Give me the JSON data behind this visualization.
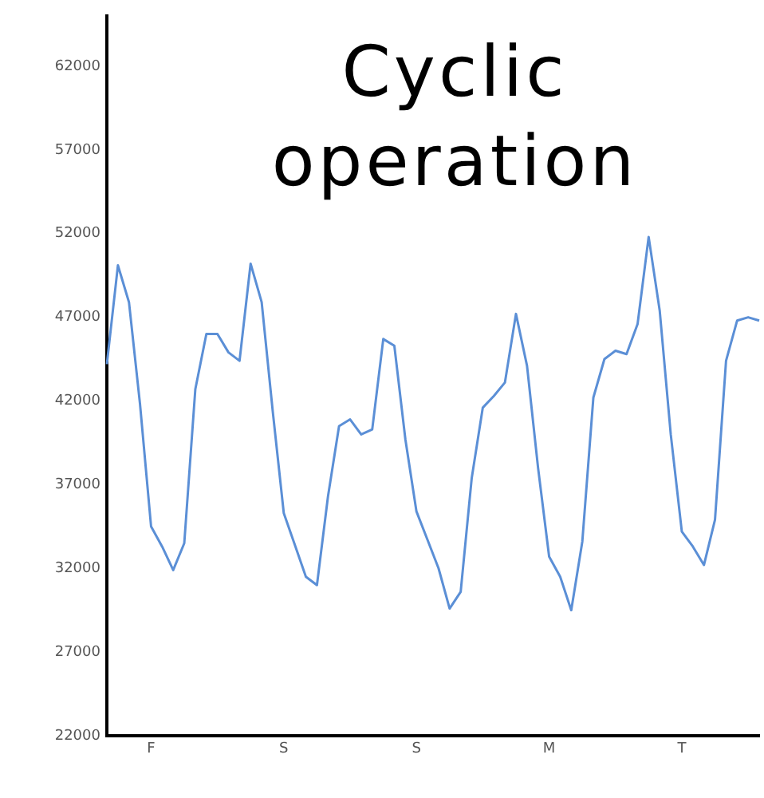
{
  "chart_data": {
    "type": "line",
    "title": "Cyclic operation",
    "categories": [
      null,
      null,
      null,
      null,
      "F",
      null,
      null,
      null,
      null,
      null,
      null,
      null,
      null,
      null,
      null,
      null,
      "S",
      null,
      null,
      null,
      null,
      null,
      null,
      null,
      null,
      null,
      null,
      null,
      "S",
      null,
      null,
      null,
      null,
      null,
      null,
      null,
      null,
      null,
      null,
      null,
      "M",
      null,
      null,
      null,
      null,
      null,
      null,
      null,
      null,
      null,
      null,
      null,
      "T",
      null,
      null,
      null,
      null,
      null,
      null,
      null
    ],
    "series": [
      {
        "color": "#5b8fd6",
        "values": [
          44200,
          50100,
          47900,
          41800,
          34500,
          33300,
          31900,
          33500,
          42700,
          46000,
          46000,
          44900,
          44400,
          50200,
          47900,
          41400,
          35300,
          33400,
          31500,
          31000,
          36300,
          40500,
          40900,
          40000,
          40300,
          45700,
          45300,
          39700,
          35400,
          33700,
          32000,
          29600,
          30600,
          37400,
          41600,
          42300,
          43100,
          47200,
          44100,
          38000,
          32700,
          31500,
          29500,
          33600,
          42200,
          44500,
          45000,
          44800,
          46600,
          51800,
          47400,
          40000,
          34200,
          33300,
          32200,
          34900,
          44400,
          46800,
          47000,
          46800
        ]
      }
    ],
    "ylim": [
      22000,
      65000
    ],
    "yticks": [
      22000,
      27000,
      32000,
      37000,
      42000,
      47000,
      52000,
      57000,
      62000
    ],
    "grid": false,
    "legend": false,
    "marker": "none",
    "line_style": "solid"
  }
}
